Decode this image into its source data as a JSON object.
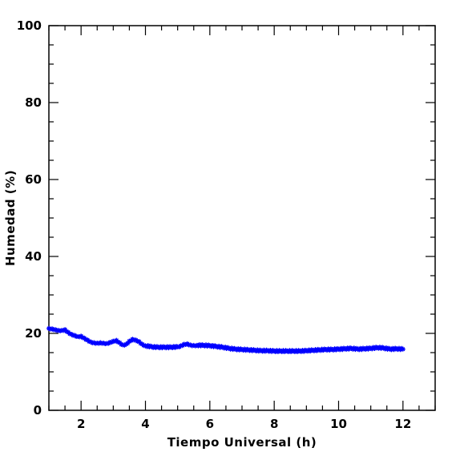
{
  "chart_data": {
    "type": "scatter",
    "title": "",
    "xlabel": "Tiempo Universal (h)",
    "ylabel": "Humedad (%)",
    "xlim": [
      1,
      13
    ],
    "ylim": [
      0,
      100
    ],
    "x_ticks": [
      2,
      4,
      6,
      8,
      10,
      12
    ],
    "x_tick_labels": [
      "2",
      "4",
      "6",
      "8",
      "10",
      "12"
    ],
    "y_ticks": [
      0,
      20,
      40,
      60,
      80,
      100
    ],
    "y_tick_labels": [
      "0",
      "20",
      "40",
      "60",
      "80",
      "100"
    ],
    "grid": false,
    "marker": "star",
    "series": [
      {
        "color": "#0000ff",
        "x": [
          1.0,
          1.1,
          1.2,
          1.3,
          1.4,
          1.5,
          1.6,
          1.7,
          1.8,
          1.9,
          2.0,
          2.1,
          2.2,
          2.3,
          2.4,
          2.5,
          2.6,
          2.7,
          2.8,
          2.9,
          3.0,
          3.1,
          3.2,
          3.3,
          3.4,
          3.5,
          3.6,
          3.7,
          3.8,
          3.9,
          4.0,
          4.2,
          4.4,
          4.6,
          4.8,
          5.0,
          5.1,
          5.2,
          5.3,
          5.4,
          5.5,
          5.6,
          5.8,
          6.0,
          6.2,
          6.4,
          6.6,
          6.8,
          7.0,
          7.2,
          7.4,
          7.6,
          7.8,
          8.0,
          8.2,
          8.4,
          8.6,
          8.8,
          9.0,
          9.2,
          9.4,
          9.6,
          9.8,
          10.0,
          10.2,
          10.4,
          10.6,
          10.8,
          11.0,
          11.2,
          11.4,
          11.6,
          11.8,
          12.0
        ],
        "y": [
          21.3,
          21.2,
          21.0,
          20.8,
          20.8,
          21.0,
          20.3,
          19.8,
          19.5,
          19.2,
          19.3,
          18.8,
          18.3,
          17.8,
          17.6,
          17.5,
          17.6,
          17.5,
          17.4,
          17.7,
          18.0,
          18.2,
          17.6,
          17.0,
          17.2,
          18.0,
          18.5,
          18.3,
          17.9,
          17.2,
          16.8,
          16.5,
          16.4,
          16.4,
          16.4,
          16.5,
          16.8,
          17.2,
          17.3,
          17.0,
          16.9,
          16.9,
          16.9,
          16.8,
          16.6,
          16.4,
          16.1,
          15.9,
          15.8,
          15.7,
          15.6,
          15.5,
          15.5,
          15.4,
          15.4,
          15.4,
          15.4,
          15.4,
          15.5,
          15.6,
          15.7,
          15.8,
          15.8,
          15.9,
          16.0,
          16.1,
          15.9,
          16.0,
          16.1,
          16.3,
          16.2,
          15.9,
          16.0,
          15.9
        ]
      }
    ]
  }
}
